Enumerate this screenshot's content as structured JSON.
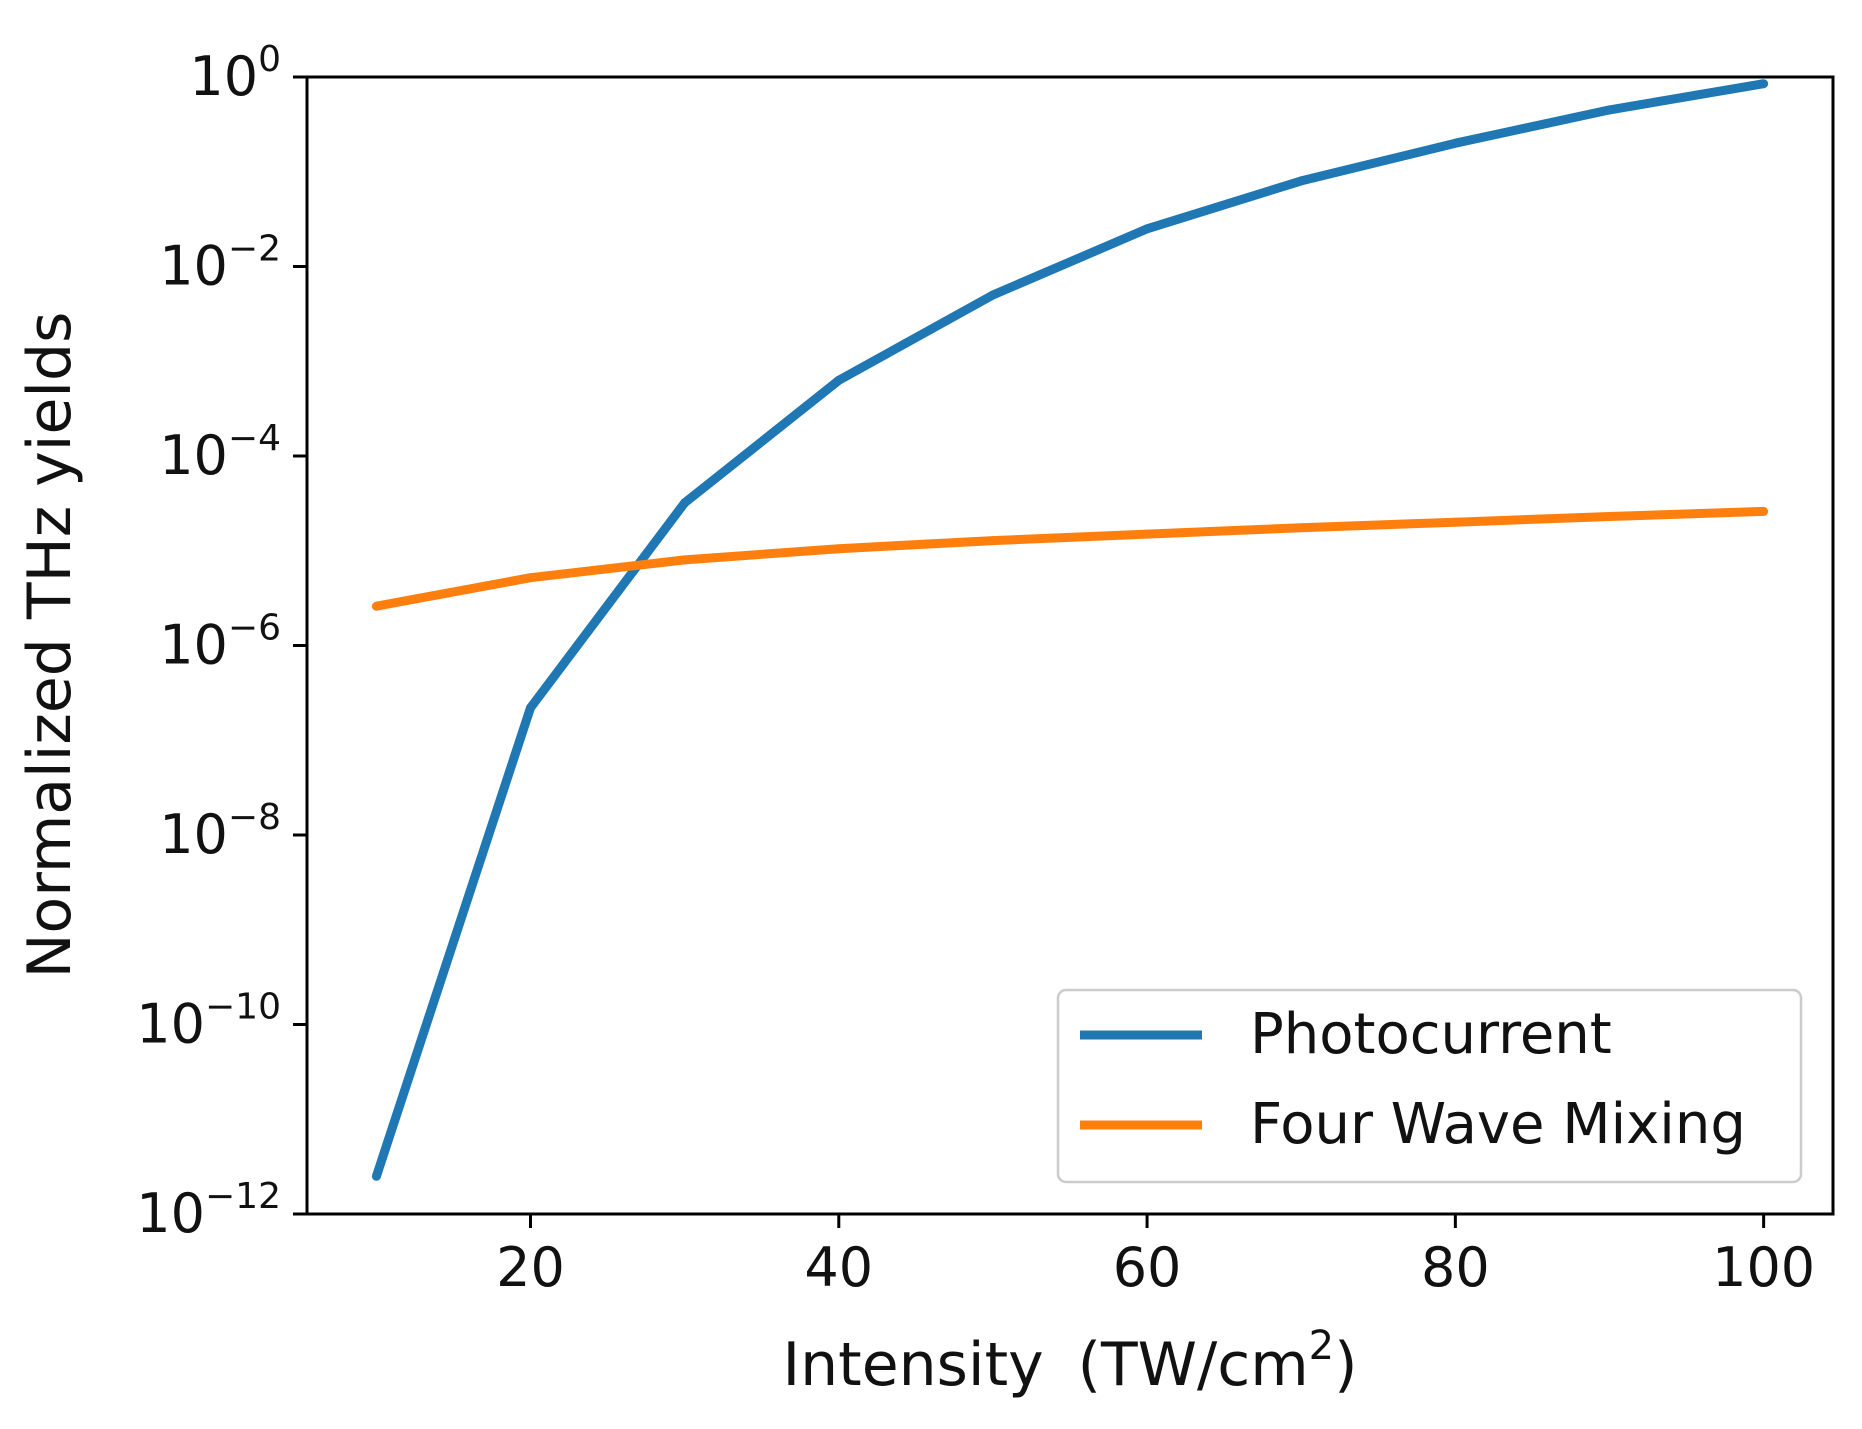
{
  "chart_data": {
    "type": "line",
    "title": "",
    "xlabel": "Intensity",
    "xlabel_unit_base": "(TW/cm",
    "xlabel_unit_exp": "2",
    "xlabel_unit_close": ")",
    "ylabel": "Normalized THz yields",
    "yscale": "log",
    "xlim": [
      5.5,
      104.5
    ],
    "ylim_exponent": [
      -12,
      0
    ],
    "x_ticks": [
      {
        "value": 20,
        "label": "20"
      },
      {
        "value": 40,
        "label": "40"
      },
      {
        "value": 60,
        "label": "60"
      },
      {
        "value": 80,
        "label": "80"
      },
      {
        "value": 100,
        "label": "100"
      }
    ],
    "y_ticks": [
      {
        "exp": 0,
        "base": "10",
        "sup": "0"
      },
      {
        "exp": -2,
        "base": "10",
        "sup": "−2"
      },
      {
        "exp": -4,
        "base": "10",
        "sup": "−4"
      },
      {
        "exp": -6,
        "base": "10",
        "sup": "−6"
      },
      {
        "exp": -8,
        "base": "10",
        "sup": "−8"
      },
      {
        "exp": -10,
        "base": "10",
        "sup": "−10"
      },
      {
        "exp": -12,
        "base": "10",
        "sup": "−12"
      }
    ],
    "legend_position": "lower-right",
    "series": [
      {
        "name": "Photocurrent",
        "color": "#1f77b4",
        "x": [
          10,
          20,
          30,
          40,
          50,
          60,
          70,
          80,
          90,
          100
        ],
        "y": [
          2.5e-12,
          2.2e-07,
          3.2e-05,
          0.00063,
          0.005,
          0.025,
          0.08,
          0.2,
          0.45,
          0.85
        ]
      },
      {
        "name": "Four Wave Mixing",
        "color": "#ff7f0e",
        "x": [
          10,
          20,
          30,
          40,
          50,
          60,
          70,
          80,
          90,
          100
        ],
        "y": [
          2.6e-06,
          5.2e-06,
          8e-06,
          1.05e-05,
          1.28e-05,
          1.5e-05,
          1.75e-05,
          2e-05,
          2.3e-05,
          2.6e-05
        ]
      }
    ]
  }
}
